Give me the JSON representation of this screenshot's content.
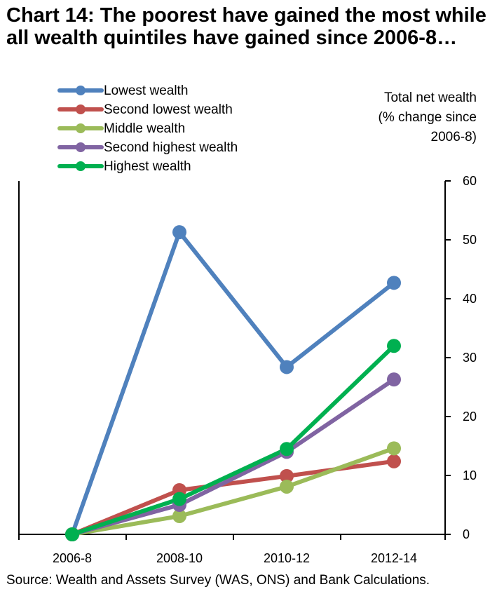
{
  "chart_data": {
    "type": "line",
    "title": "Chart 14: The poorest have gained the most while all wealth quintiles have gained since 2006-8…",
    "xlabel": "",
    "ylabel": "Total net wealth (% change since 2006-8)",
    "y_axis_side": "right",
    "ylim": [
      0,
      60
    ],
    "yticks": [
      0,
      10,
      20,
      30,
      40,
      50,
      60
    ],
    "grid": false,
    "legend_position": "top-left",
    "categories": [
      "2006-8",
      "2008-10",
      "2010-12",
      "2012-14"
    ],
    "series": [
      {
        "name": "Lowest wealth",
        "color": "#4F81BD",
        "values": [
          0,
          51.3,
          28.4,
          42.7
        ]
      },
      {
        "name": "Second lowest wealth",
        "color": "#C0504D",
        "values": [
          0,
          7.5,
          9.9,
          12.4
        ]
      },
      {
        "name": "Middle wealth",
        "color": "#9BBB59",
        "values": [
          0,
          3.1,
          8.1,
          14.6
        ]
      },
      {
        "name": "Second highest wealth",
        "color": "#8064A2",
        "values": [
          0,
          5.0,
          14.0,
          26.3
        ]
      },
      {
        "name": "Highest wealth",
        "color": "#00B050",
        "values": [
          0,
          6.0,
          14.5,
          32.0
        ]
      }
    ]
  },
  "source": "Source: Wealth and Assets Survey (WAS, ONS) and Bank Calculations."
}
